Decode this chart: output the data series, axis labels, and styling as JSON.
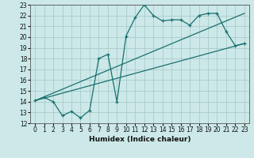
{
  "title": "",
  "xlabel": "Humidex (Indice chaleur)",
  "bg_color": "#cce8e8",
  "grid_color": "#aacccc",
  "line_color": "#1a7070",
  "xlim_min": -0.5,
  "xlim_max": 23.5,
  "ylim_min": 12,
  "ylim_max": 23,
  "xticks": [
    0,
    1,
    2,
    3,
    4,
    5,
    6,
    7,
    8,
    9,
    10,
    11,
    12,
    13,
    14,
    15,
    16,
    17,
    18,
    19,
    20,
    21,
    22,
    23
  ],
  "yticks": [
    12,
    13,
    14,
    15,
    16,
    17,
    18,
    19,
    20,
    21,
    22,
    23
  ],
  "line1_x": [
    0,
    1,
    2,
    3,
    4,
    5,
    6,
    7,
    8,
    9,
    10,
    11,
    12,
    13,
    14,
    15,
    16,
    17,
    18,
    19,
    20,
    21,
    22,
    23
  ],
  "line1_y": [
    14.1,
    14.4,
    14.0,
    12.7,
    13.1,
    12.5,
    13.2,
    18.0,
    18.4,
    14.0,
    20.1,
    21.8,
    23.0,
    22.0,
    21.5,
    21.6,
    21.6,
    21.1,
    22.0,
    22.2,
    22.2,
    20.5,
    19.2,
    19.4
  ],
  "line2_x": [
    0,
    23
  ],
  "line2_y": [
    14.1,
    19.4
  ],
  "line3_x": [
    0,
    23
  ],
  "line3_y": [
    14.1,
    22.2
  ],
  "tick_fontsize": 5.5,
  "xlabel_fontsize": 6.5,
  "marker_size": 3.5,
  "line_width": 0.9
}
